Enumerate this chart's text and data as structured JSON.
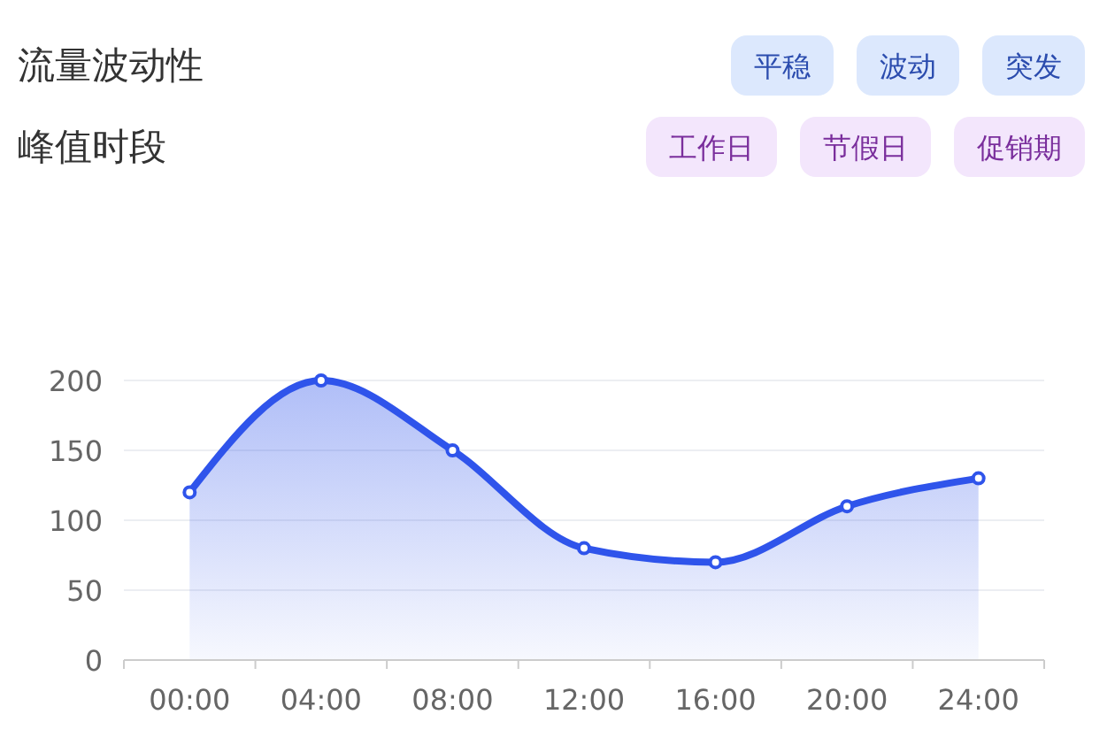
{
  "chart_data": {
    "type": "area",
    "annotations": [
      "流量波动性",
      "平稳",
      "波动",
      "突发",
      "峰值时段",
      "工作日",
      "节假日",
      "促销期"
    ],
    "categories": [
      "00:00",
      "04:00",
      "08:00",
      "12:00",
      "16:00",
      "20:00",
      "24:00"
    ],
    "series": [
      {
        "color": "#2f54eb",
        "values": [
          120,
          200,
          150,
          80,
          70,
          110,
          130
        ]
      }
    ],
    "ylim": [
      0,
      200
    ],
    "yticks": [
      0,
      50,
      100,
      150,
      200
    ],
    "grid": "y",
    "marker": "circle",
    "line_style": "solid"
  }
}
